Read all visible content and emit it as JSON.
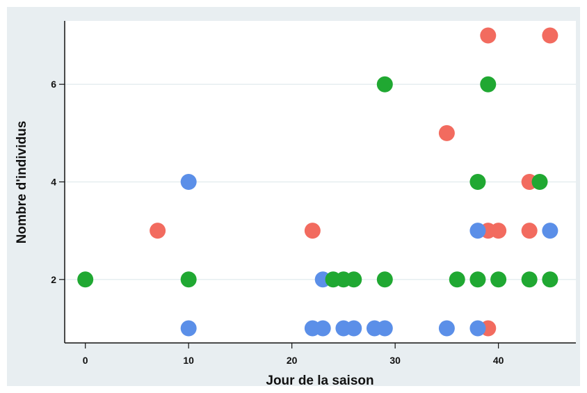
{
  "chart_data": {
    "type": "scatter",
    "title": "",
    "xlabel": "Jour de la saison",
    "ylabel": "Nombre d'individus",
    "xlim": [
      -2,
      47.5
    ],
    "ylim": [
      0.7,
      7.3
    ],
    "xticks": [
      0,
      10,
      20,
      30,
      40
    ],
    "yticks": [
      2,
      4,
      6
    ],
    "grid": "horizontal",
    "legend": "none",
    "series": [
      {
        "color": "#f26b5f",
        "points": [
          [
            7,
            3
          ],
          [
            22,
            3
          ],
          [
            35,
            5
          ],
          [
            39,
            7
          ],
          [
            45,
            7
          ],
          [
            43,
            4
          ],
          [
            39,
            3
          ],
          [
            40,
            3
          ],
          [
            43,
            3
          ],
          [
            39,
            1
          ]
        ]
      },
      {
        "color": "#5b8fe8",
        "points": [
          [
            10,
            4
          ],
          [
            10,
            1
          ],
          [
            23,
            2
          ],
          [
            22,
            1
          ],
          [
            23,
            1
          ],
          [
            25,
            1
          ],
          [
            26,
            1
          ],
          [
            28,
            1
          ],
          [
            29,
            1
          ],
          [
            35,
            1
          ],
          [
            38,
            1
          ],
          [
            38,
            3
          ],
          [
            45,
            3
          ]
        ]
      },
      {
        "color": "#20a832",
        "points": [
          [
            0,
            2
          ],
          [
            10,
            2
          ],
          [
            24,
            2
          ],
          [
            25,
            2
          ],
          [
            26,
            2
          ],
          [
            29,
            2
          ],
          [
            36,
            2
          ],
          [
            38,
            2
          ],
          [
            40,
            2
          ],
          [
            43,
            2
          ],
          [
            45,
            2
          ],
          [
            29,
            6
          ],
          [
            39,
            6
          ],
          [
            38,
            4
          ],
          [
            44,
            4
          ]
        ]
      }
    ]
  }
}
